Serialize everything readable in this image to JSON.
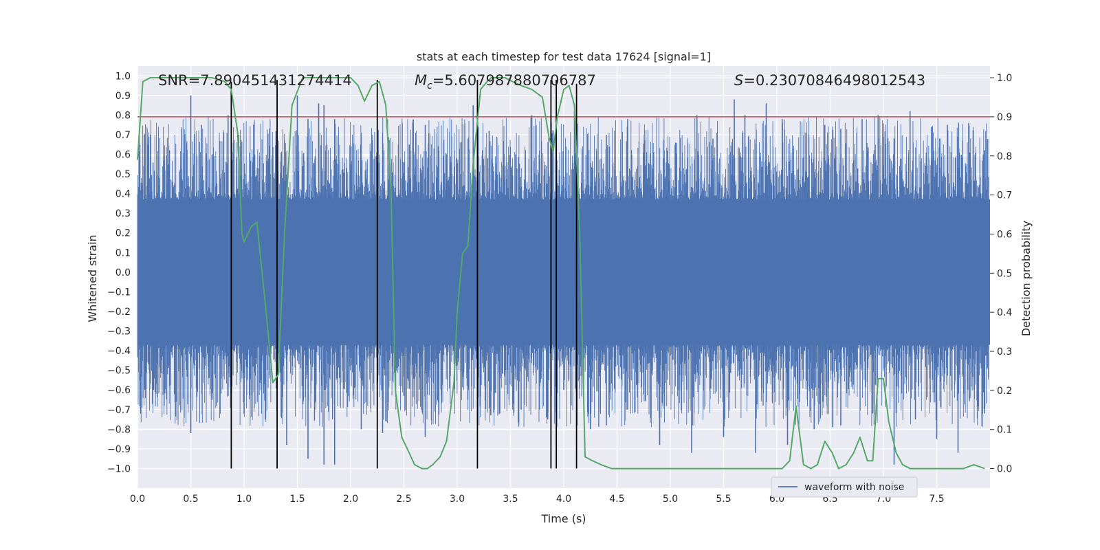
{
  "chart_data": {
    "type": "line",
    "title": "stats at each timestep for test data 17624 [signal=1]",
    "xlabel": "Time (s)",
    "ylabel": "Whitened strain",
    "y2label": "Detection probability",
    "xlim": [
      0,
      8
    ],
    "ylim": [
      -1.1,
      1.05
    ],
    "y2lim": [
      -0.05,
      1.03
    ],
    "xticks": [
      0.0,
      0.5,
      1.0,
      1.5,
      2.0,
      2.5,
      3.0,
      3.5,
      4.0,
      4.5,
      5.0,
      5.5,
      6.0,
      6.5,
      7.0,
      7.5
    ],
    "xtick_labels": [
      "0.0",
      "0.5",
      "1.0",
      "1.5",
      "2.0",
      "2.5",
      "3.0",
      "3.5",
      "4.0",
      "4.5",
      "5.0",
      "5.5",
      "6.0",
      "6.5",
      "7.0",
      "7.5"
    ],
    "yticks": [
      1.0,
      0.9,
      0.8,
      0.7,
      0.6,
      0.5,
      0.4,
      0.3,
      0.2,
      0.1,
      0.0,
      -0.1,
      -0.2,
      -0.3,
      -0.4,
      -0.5,
      -0.6,
      -0.7,
      -0.8,
      -0.9,
      -1.0
    ],
    "ytick_labels": [
      "1.0",
      "0.9",
      "0.8",
      "0.7",
      "0.6",
      "0.5",
      "0.4",
      "0.3",
      "0.2",
      "0.1",
      "0.0",
      "−0.1",
      "−0.2",
      "−0.3",
      "−0.4",
      "−0.5",
      "−0.6",
      "−0.7",
      "−0.8",
      "−0.9",
      "−1.0"
    ],
    "y2ticks": [
      1.0,
      0.9,
      0.8,
      0.7,
      0.6,
      0.5,
      0.4,
      0.3,
      0.2,
      0.1,
      0.0
    ],
    "y2tick_labels": [
      "1.0",
      "0.9",
      "0.8",
      "0.7",
      "0.6",
      "0.5",
      "0.4",
      "0.3",
      "0.2",
      "0.1",
      "0.0"
    ],
    "grid": true,
    "annotations": {
      "snr": "SNR=7.890451431274414",
      "mc_symbol": "M",
      "mc_sub": "c",
      "mc_value": "=5.607987880706787",
      "s_symbol": "S",
      "s_value": "=0.23070846498012543"
    },
    "legend": {
      "label": "waveform with noise",
      "position": "bottom-right"
    },
    "waveform": {
      "name": "waveform with noise",
      "color": "#4c72b0",
      "envelope_low": -0.37,
      "envelope_high": 0.37,
      "spike_peaks_pos": [
        [
          0.05,
          0.42
        ],
        [
          0.1,
          0.52
        ],
        [
          0.2,
          0.48
        ],
        [
          0.3,
          0.62
        ],
        [
          0.5,
          0.9
        ],
        [
          0.6,
          0.75
        ],
        [
          0.7,
          0.6
        ],
        [
          0.85,
          0.8
        ],
        [
          0.95,
          0.7
        ],
        [
          1.1,
          0.6
        ],
        [
          1.3,
          0.72
        ],
        [
          1.5,
          0.9
        ],
        [
          1.6,
          0.78
        ],
        [
          1.7,
          0.86
        ],
        [
          1.75,
          0.85
        ],
        [
          1.85,
          0.78
        ],
        [
          2.0,
          0.55
        ],
        [
          2.2,
          0.7
        ],
        [
          2.55,
          0.65
        ],
        [
          2.7,
          0.75
        ],
        [
          2.9,
          0.6
        ],
        [
          3.15,
          0.85
        ],
        [
          3.3,
          0.72
        ],
        [
          3.55,
          0.6
        ],
        [
          3.7,
          0.8
        ],
        [
          3.9,
          0.72
        ],
        [
          4.1,
          0.82
        ],
        [
          4.4,
          0.7
        ],
        [
          4.6,
          0.78
        ],
        [
          4.8,
          0.55
        ],
        [
          5.05,
          0.66
        ],
        [
          5.25,
          0.8
        ],
        [
          5.4,
          0.68
        ],
        [
          5.6,
          0.88
        ],
        [
          5.7,
          0.8
        ],
        [
          5.9,
          0.86
        ],
        [
          6.05,
          0.78
        ],
        [
          6.3,
          0.7
        ],
        [
          6.45,
          0.75
        ],
        [
          6.6,
          0.73
        ],
        [
          6.8,
          0.78
        ],
        [
          6.95,
          0.8
        ],
        [
          7.1,
          0.68
        ],
        [
          7.25,
          0.82
        ],
        [
          7.45,
          0.74
        ],
        [
          7.6,
          0.75
        ],
        [
          7.8,
          0.76
        ],
        [
          7.95,
          0.62
        ]
      ],
      "spike_peaks_neg": [
        [
          0.03,
          -0.72
        ],
        [
          0.15,
          -0.6
        ],
        [
          0.25,
          -0.68
        ],
        [
          0.5,
          -0.82
        ],
        [
          0.7,
          -0.65
        ],
        [
          0.85,
          -0.63
        ],
        [
          1.0,
          -0.72
        ],
        [
          1.2,
          -0.75
        ],
        [
          1.4,
          -0.88
        ],
        [
          1.6,
          -0.95
        ],
        [
          1.75,
          -0.98
        ],
        [
          1.85,
          -0.98
        ],
        [
          2.1,
          -0.8
        ],
        [
          2.3,
          -0.82
        ],
        [
          2.5,
          -0.63
        ],
        [
          2.7,
          -0.84
        ],
        [
          2.85,
          -0.6
        ],
        [
          3.1,
          -0.65
        ],
        [
          3.4,
          -0.72
        ],
        [
          3.6,
          -0.7
        ],
        [
          3.85,
          -0.75
        ],
        [
          4.0,
          -0.6
        ],
        [
          4.25,
          -0.8
        ],
        [
          4.4,
          -0.78
        ],
        [
          4.6,
          -0.7
        ],
        [
          4.9,
          -0.88
        ],
        [
          5.2,
          -0.92
        ],
        [
          5.5,
          -0.84
        ],
        [
          5.8,
          -0.92
        ],
        [
          6.1,
          -0.88
        ],
        [
          6.35,
          -0.8
        ],
        [
          6.6,
          -0.78
        ],
        [
          6.9,
          -0.72
        ],
        [
          7.1,
          -0.98
        ],
        [
          7.3,
          -0.75
        ],
        [
          7.5,
          -0.85
        ],
        [
          7.7,
          -0.92
        ],
        [
          7.95,
          -0.72
        ]
      ]
    },
    "detection_probability": {
      "color": "#55a868",
      "x": [
        0.0,
        0.05,
        0.12,
        0.2,
        0.3,
        0.4,
        0.5,
        0.6,
        0.7,
        0.82,
        0.88,
        0.94,
        0.98,
        1.0,
        1.07,
        1.12,
        1.2,
        1.27,
        1.32,
        1.38,
        1.45,
        1.55,
        1.65,
        1.75,
        1.85,
        2.0,
        2.07,
        2.13,
        2.2,
        2.27,
        2.33,
        2.38,
        2.42,
        2.48,
        2.55,
        2.6,
        2.67,
        2.72,
        2.77,
        2.84,
        2.9,
        2.97,
        3.0,
        3.05,
        3.1,
        3.15,
        3.22,
        3.28,
        3.32,
        3.38,
        3.45,
        3.52,
        3.6,
        3.7,
        3.8,
        3.86,
        3.9,
        3.94,
        4.0,
        4.05,
        4.1,
        4.15,
        4.2,
        4.27,
        4.35,
        4.45,
        4.55,
        4.7,
        4.85,
        5.0,
        5.15,
        5.3,
        5.45,
        5.6,
        5.75,
        5.9,
        6.05,
        6.12,
        6.18,
        6.25,
        6.32,
        6.38,
        6.45,
        6.52,
        6.58,
        6.65,
        6.72,
        6.78,
        6.85,
        6.9,
        6.95,
        7.0,
        7.05,
        7.12,
        7.18,
        7.25,
        7.3,
        7.45,
        7.6,
        7.75,
        7.85,
        7.95
      ],
      "y": [
        0.79,
        0.99,
        1.0,
        1.0,
        1.0,
        1.0,
        1.0,
        1.0,
        1.0,
        0.99,
        0.97,
        0.86,
        0.6,
        0.58,
        0.62,
        0.63,
        0.42,
        0.22,
        0.24,
        0.6,
        0.93,
        1.0,
        1.0,
        1.0,
        1.0,
        1.0,
        0.98,
        0.94,
        0.98,
        0.99,
        0.93,
        0.7,
        0.2,
        0.08,
        0.04,
        0.01,
        0.0,
        0.0,
        0.01,
        0.03,
        0.07,
        0.22,
        0.4,
        0.55,
        0.57,
        0.78,
        0.97,
        0.99,
        1.0,
        1.0,
        1.0,
        0.99,
        0.98,
        0.97,
        0.95,
        0.85,
        0.81,
        0.9,
        0.97,
        0.98,
        0.93,
        0.6,
        0.03,
        0.02,
        0.01,
        0.0,
        0.0,
        0.0,
        0.0,
        0.0,
        0.0,
        0.0,
        0.0,
        0.0,
        0.0,
        0.0,
        0.0,
        0.02,
        0.16,
        0.01,
        0.0,
        0.01,
        0.07,
        0.04,
        0.0,
        0.01,
        0.04,
        0.08,
        0.02,
        0.02,
        0.23,
        0.23,
        0.12,
        0.04,
        0.01,
        0.0,
        0.0,
        0.0,
        0.0,
        0.0,
        0.01,
        0.0
      ]
    },
    "threshold": {
      "value": 0.9,
      "axis": "y2",
      "color": "#c44e52"
    },
    "vertical_markers": [
      0.88,
      1.31,
      2.25,
      3.19,
      3.88,
      3.93,
      4.12
    ],
    "marker_bottom": -1.0,
    "marker_tops": [
      0.97,
      0.98,
      0.98,
      0.98,
      0.98,
      0.98,
      0.96
    ]
  }
}
